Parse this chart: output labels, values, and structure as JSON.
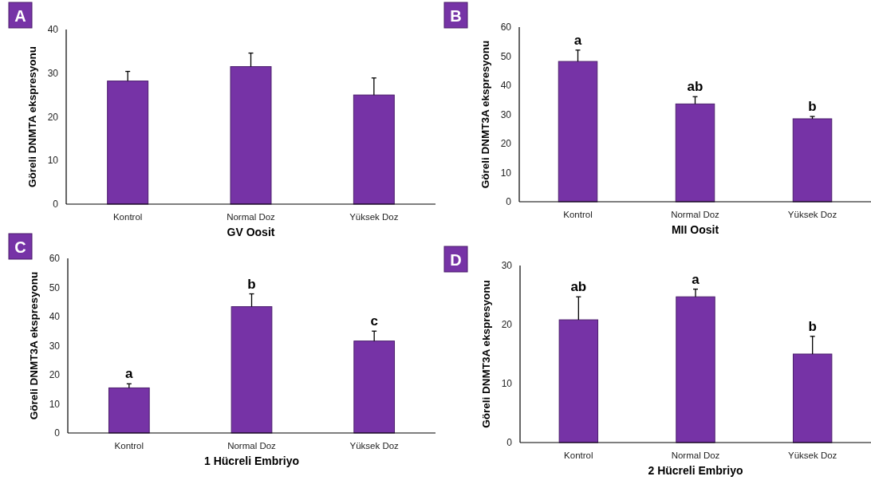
{
  "chart_data": [
    {
      "type": "bar",
      "title": "A",
      "xlabel": "GV Oosit",
      "ylabel": "Göreli DNMTA ekspresyonu",
      "categories": [
        "Kontrol",
        "Normal Doz",
        "Yüksek Doz"
      ],
      "values": [
        28.2,
        31.5,
        25.0
      ],
      "errors": [
        [
          28.2,
          30.4
        ],
        [
          31.5,
          34.6
        ],
        [
          25.0,
          28.9
        ]
      ],
      "color": "#7633a6",
      "ylim": [
        0,
        40
      ],
      "yticks": [
        0,
        10,
        20,
        30,
        40
      ],
      "grid": false
    },
    {
      "type": "bar",
      "title": "B",
      "xlabel": "MII Oosit",
      "ylabel": "Göreli DNMT3A ekspresyonu",
      "categories": [
        "Kontrol",
        "Normal Doz",
        "Yüksek Doz"
      ],
      "values": [
        48.2,
        33.6,
        28.5
      ],
      "errors": [
        [
          48.2,
          52.1
        ],
        [
          33.6,
          36.1
        ],
        [
          28.5,
          29.3
        ]
      ],
      "color": "#7633a6",
      "ylim": [
        0,
        60
      ],
      "yticks": [
        0,
        10,
        20,
        30,
        40,
        50,
        60
      ],
      "grid": false,
      "annotations": [
        {
          "text": "a",
          "x": "Kontrol",
          "y": 52.1
        },
        {
          "text": "ab",
          "x": "Normal Doz",
          "y": 36.1
        },
        {
          "text": "b",
          "x": "Yüksek Doz",
          "y": 29.3
        }
      ]
    },
    {
      "type": "bar",
      "title": "C",
      "xlabel": "1 Hücreli Embriyo",
      "ylabel": "Göreli DNMT3A ekspresyonu",
      "categories": [
        "Kontrol",
        "Normal Doz",
        "Yüksek Doz"
      ],
      "values": [
        15.5,
        43.4,
        31.6
      ],
      "errors": [
        [
          15.5,
          16.9
        ],
        [
          43.4,
          47.8
        ],
        [
          31.6,
          35.0
        ]
      ],
      "color": "#7633a6",
      "ylim": [
        0,
        60
      ],
      "yticks": [
        0,
        10,
        20,
        30,
        40,
        50,
        60
      ],
      "grid": false,
      "annotations": [
        {
          "text": "a",
          "x": "Kontrol",
          "y": 16.9
        },
        {
          "text": "b",
          "x": "Normal Doz",
          "y": 47.8
        },
        {
          "text": "c",
          "x": "Yüksek Doz",
          "y": 35.0
        }
      ]
    },
    {
      "type": "bar",
      "title": "D",
      "xlabel": "2 Hücreli Embriyo",
      "ylabel": "Göreli DNMT3A ekspresyonu",
      "categories": [
        "Kontrol",
        "Normal Doz",
        "Yüksek Doz"
      ],
      "values": [
        20.8,
        24.7,
        15.0
      ],
      "errors": [
        [
          20.8,
          24.7
        ],
        [
          24.7,
          26.0
        ],
        [
          15.0,
          18.0
        ]
      ],
      "color": "#7633a6",
      "ylim": [
        0,
        30
      ],
      "yticks": [
        0,
        10,
        20,
        30
      ],
      "grid": false,
      "annotations": [
        {
          "text": "ab",
          "x": "Kontrol",
          "y": 24.7
        },
        {
          "text": "a",
          "x": "Normal Doz",
          "y": 26.0
        },
        {
          "text": "b",
          "x": "Yüksek Doz",
          "y": 18.0
        }
      ]
    }
  ]
}
